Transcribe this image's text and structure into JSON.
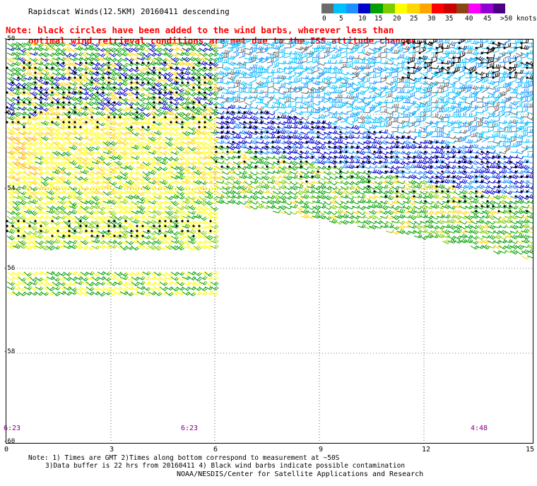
{
  "title": "Rapidscat Winds(12.5KM) 20160411 descending",
  "note_line1": "Note: black circles have been added to the wind barbs, wherever less than",
  "note_line2": "optimal wind retrieval conditions are met due to the ISS attitude changes",
  "legend": {
    "labels": [
      "0",
      "5",
      "10",
      "15",
      "20",
      "25",
      "30",
      "35",
      "40",
      "45",
      ">50 knots"
    ],
    "colors": [
      "#6b6b6b",
      "#00bfff",
      "#1e90ff",
      "#0000cd",
      "#00a000",
      "#7ccd00",
      "#ffff00",
      "#ffd700",
      "#ffa500",
      "#ff0000",
      "#cd0000",
      "#8b4513",
      "#ff00ff",
      "#9400d3",
      "#4b0082"
    ]
  },
  "lat_labels": [
    "-50",
    "-52",
    "-54",
    "-56",
    "-58",
    "-60"
  ],
  "lon_labels": [
    "0",
    "3",
    "6",
    "9",
    "12",
    "15"
  ],
  "time_labels": [
    "6:23",
    "6:23",
    "4:48"
  ],
  "footnote_line1": "Note: 1) Times are GMT 2)Times along bottom correspond to measurement at ~50S",
  "footnote_line2": "3)Data buffer is 22 hrs from 20160411 4) Black wind barbs indicate possible contamination",
  "credit": "NOAA/NESDIS/Center for Satellite Applications and Research",
  "map": {
    "lon_range": [
      0,
      15
    ],
    "lat_range": [
      -60,
      -50
    ],
    "grid": "dotted",
    "swaths": [
      {
        "name": "west",
        "lon": [
          0,
          6
        ],
        "lat": [
          -56.3,
          -50
        ],
        "dominant_speed": "15-25 knots"
      },
      {
        "name": "east",
        "lon": [
          6,
          15
        ],
        "lat": [
          -56,
          -50
        ],
        "dominant_speed": "5-25 knots"
      }
    ]
  }
}
